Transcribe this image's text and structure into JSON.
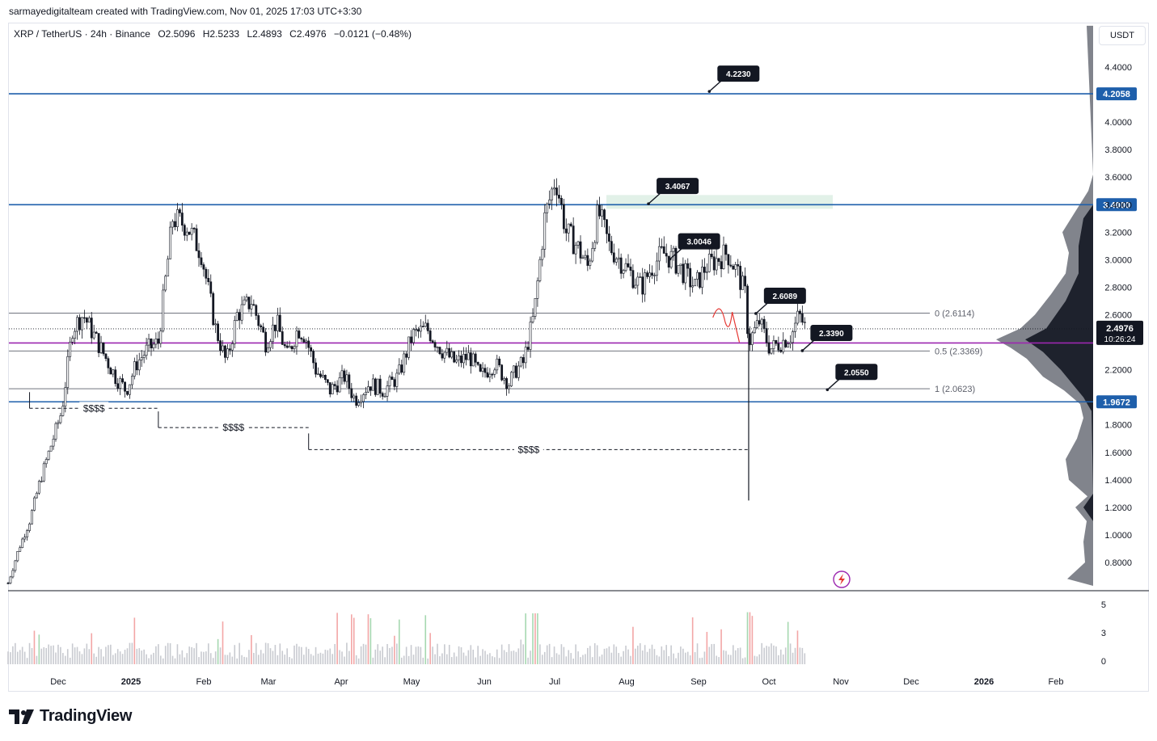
{
  "header": {
    "credit": "sarmayedigitalteam created with TradingView.com, Nov 01, 2025 17:03 UTC+3:30"
  },
  "legend": {
    "symbol": "XRP / TetherUS · 24h · Binance",
    "open": "O2.5096",
    "high": "H2.5233",
    "low": "L2.4893",
    "close": "C2.4976",
    "change": "−0.0121 (−0.48%)"
  },
  "unit_button": {
    "label": "USDT"
  },
  "brand": {
    "name": "TradingView",
    "icon": "tradingview-logo-icon"
  },
  "overlay_icon": "lightning-icon",
  "colors": {
    "hline_blue": "#1e5fab",
    "poc_purple": "#9c27b0",
    "candle": "#131722",
    "zone": "#dff0e6",
    "vol_red": "#f3a6a6",
    "vol_green": "#a6d8b0",
    "vol_gray": "#c8cad0"
  },
  "chart_data": {
    "type": "candlestick",
    "y_axis": {
      "ticks": [
        "4.4000",
        "4.0000",
        "3.8000",
        "3.6000",
        "3.4000",
        "3.2000",
        "3.0000",
        "2.8000",
        "2.6000",
        "2.2000",
        "1.8000",
        "1.6000",
        "1.4000",
        "1.2000",
        "1.0000",
        "0.8000"
      ],
      "tick_values": [
        4.4,
        4.0,
        3.8,
        3.6,
        3.4,
        3.2,
        3.0,
        2.8,
        2.6,
        2.2,
        1.8,
        1.6,
        1.4,
        1.2,
        1.0,
        0.8
      ],
      "ylim": [
        0.62,
        4.8
      ]
    },
    "x_axis": {
      "ticks": [
        "Dec",
        "2025",
        "Feb",
        "Mar",
        "Apr",
        "May",
        "Jun",
        "Jul",
        "Aug",
        "Sep",
        "Oct",
        "Nov",
        "Dec",
        "2026",
        "Feb"
      ],
      "bold": [
        false,
        true,
        false,
        false,
        false,
        false,
        false,
        false,
        false,
        false,
        false,
        false,
        false,
        true,
        false
      ]
    },
    "volume_axis": {
      "ticks": [
        "5",
        "3",
        "0"
      ]
    },
    "horizontal_levels": [
      {
        "value": 4.2058,
        "label": "4.2058",
        "color": "#1e5fab"
      },
      {
        "value": 3.4,
        "label": "3.4000",
        "color": "#1e5fab"
      },
      {
        "value": 1.9672,
        "label": "1.9672",
        "color": "#1e5fab"
      },
      {
        "value": 2.395,
        "label": "",
        "color": "#9c27b0"
      }
    ],
    "current_price": {
      "value": 2.4976,
      "label": "2.4976",
      "countdown": "10:26:24"
    },
    "fib_levels": [
      {
        "value": 2.6114,
        "label": "0 (2.6114)"
      },
      {
        "value": 2.3369,
        "label": "0.5 (2.3369)"
      },
      {
        "value": 2.0623,
        "label": "1 (2.0623)"
      }
    ],
    "callouts": [
      {
        "label": "4.2230",
        "value": 4.223,
        "month": 9.8
      },
      {
        "label": "3.4067",
        "value": 3.4067,
        "month": 8.95
      },
      {
        "label": "3.0046",
        "value": 3.0046,
        "month": 9.25
      },
      {
        "label": "2.6089",
        "value": 2.6089,
        "month": 10.45
      },
      {
        "label": "2.3390",
        "value": 2.339,
        "month": 11.1
      },
      {
        "label": "2.0550",
        "value": 2.055,
        "month": 11.45
      }
    ],
    "liquidity_annotations": [
      {
        "label": "$$$$",
        "value": 1.92,
        "start": 0.3,
        "end": 2.1
      },
      {
        "label": "$$$$",
        "value": 1.78,
        "start": 2.1,
        "end": 4.2
      },
      {
        "label": "$$$$",
        "value": 1.62,
        "start": 4.2,
        "end": 10.35
      }
    ],
    "close_path": {
      "months": [
        0,
        0.15,
        0.3,
        0.45,
        0.6,
        0.75,
        0.9,
        1.05,
        1.2,
        1.35,
        1.5,
        1.65,
        1.8,
        1.95,
        2.1,
        2.3,
        2.5,
        2.7,
        2.9,
        3.05,
        3.2,
        3.4,
        3.6,
        3.75,
        3.9,
        4.05,
        4.15,
        4.3,
        4.5,
        4.7,
        4.85,
        5.05,
        5.25,
        5.45,
        5.65,
        5.85,
        6.05,
        6.25,
        6.45,
        6.6,
        6.8,
        7.0,
        7.1,
        7.2,
        7.35,
        7.5,
        7.65,
        7.8,
        7.95,
        8.1,
        8.25,
        8.4,
        8.55,
        8.7,
        8.85,
        9.0,
        9.15,
        9.3,
        9.45,
        9.6,
        9.75,
        9.9,
        10.05,
        10.2,
        10.3,
        10.35,
        10.5,
        10.65,
        10.8,
        10.95,
        11.05,
        11.15
      ],
      "values": [
        0.65,
        0.9,
        1.1,
        1.4,
        1.65,
        1.9,
        2.5,
        2.6,
        2.45,
        2.3,
        2.15,
        2.05,
        2.25,
        2.35,
        2.4,
        3.3,
        3.25,
        3.05,
        2.5,
        2.25,
        2.6,
        2.7,
        2.4,
        2.55,
        2.3,
        2.5,
        2.45,
        2.2,
        2.05,
        2.15,
        1.98,
        2.1,
        2.05,
        2.15,
        2.45,
        2.5,
        2.35,
        2.25,
        2.3,
        2.15,
        2.25,
        2.1,
        2.2,
        2.25,
        2.6,
        3.3,
        3.6,
        3.2,
        3.1,
        2.95,
        3.35,
        3.1,
        3.0,
        2.9,
        2.8,
        2.95,
        3.05,
        3.0,
        2.9,
        2.8,
        2.95,
        3.0,
        3.05,
        2.9,
        2.75,
        2.4,
        2.55,
        2.35,
        2.4,
        2.45,
        2.6,
        2.5
      ]
    },
    "volume_profile_note": "",
    "time_months": {
      "start": 0,
      "end": 13.8
    }
  }
}
